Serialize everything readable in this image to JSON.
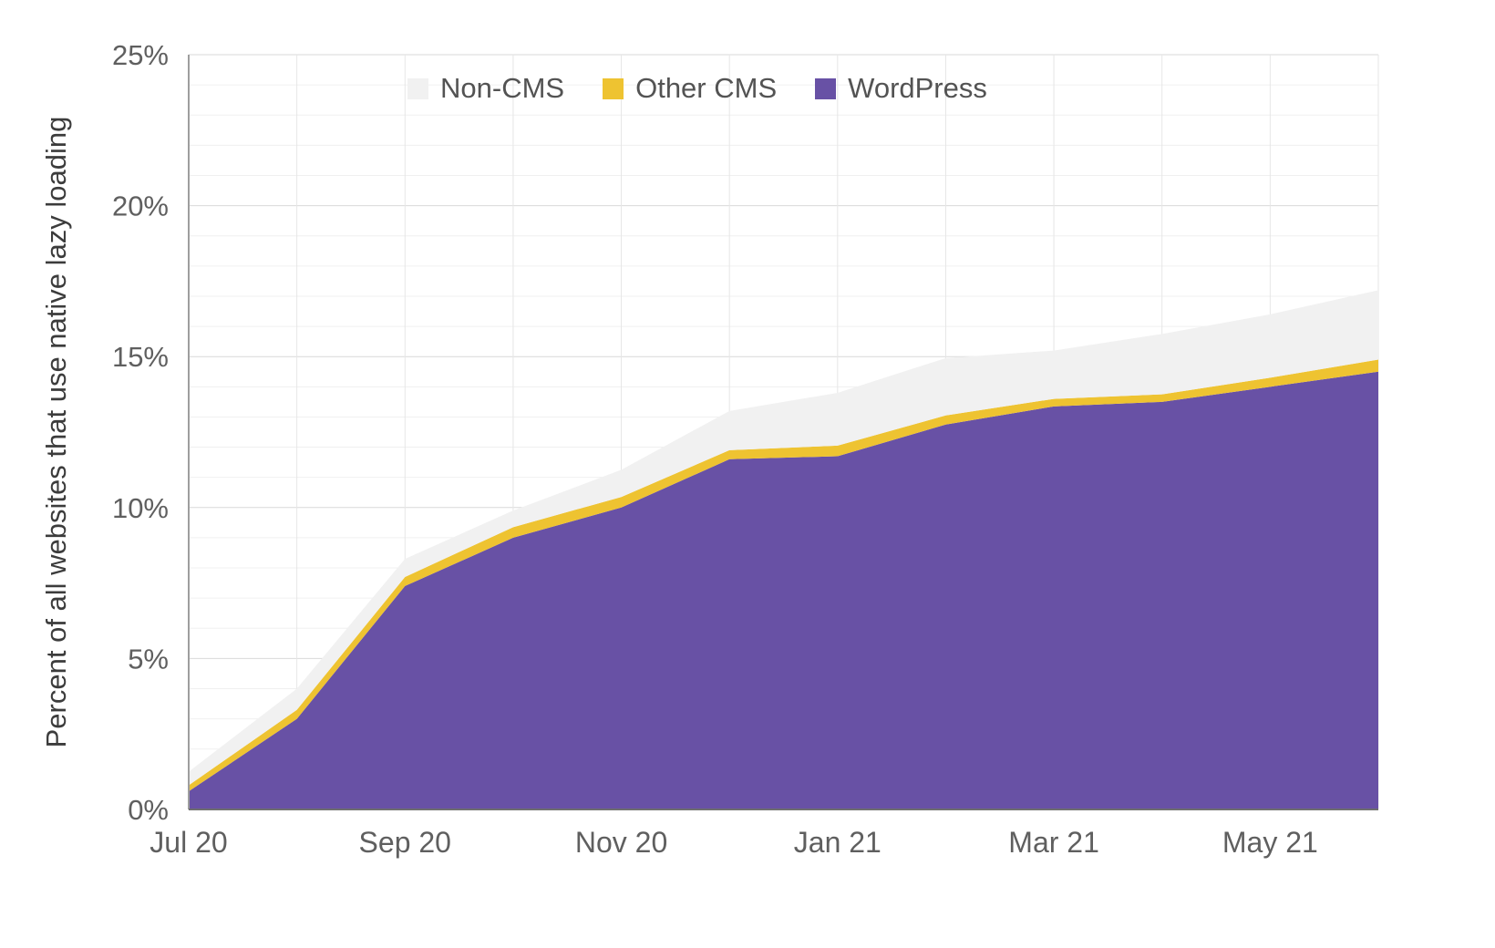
{
  "chart_data": {
    "type": "area",
    "stacked": true,
    "title": "",
    "ylabel": "Percent of all websites that use native lazy loading",
    "xlabel": "",
    "ylim": [
      0,
      25
    ],
    "grid": true,
    "legend_position": "top",
    "y_ticks": [
      0,
      5,
      10,
      15,
      20,
      25
    ],
    "y_tick_labels": [
      "0%",
      "5%",
      "10%",
      "15%",
      "20%",
      "25%"
    ],
    "x": [
      "Jul 20",
      "Aug 20",
      "Sep 20",
      "Oct 20",
      "Nov 20",
      "Dec 20",
      "Jan 21",
      "Feb 21",
      "Mar 21",
      "Apr 21",
      "May 21",
      "Jun 21"
    ],
    "x_tick_labels": [
      "Jul 20",
      "Sep 20",
      "Nov 20",
      "Jan 21",
      "Mar 21",
      "May 21"
    ],
    "x_tick_indices": [
      0,
      2,
      4,
      6,
      8,
      10
    ],
    "legend": [
      {
        "label": "Non-CMS",
        "color": "#f1f1f1"
      },
      {
        "label": "Other CMS",
        "color": "#eec331"
      },
      {
        "label": "WordPress",
        "color": "#6851a5"
      }
    ],
    "series": [
      {
        "name": "WordPress",
        "color": "#6851a5",
        "values": [
          0.6,
          3.0,
          7.4,
          9.0,
          10.0,
          11.6,
          11.7,
          12.75,
          13.35,
          13.5,
          14.0,
          14.5
        ]
      },
      {
        "name": "Other CMS",
        "color": "#eec331",
        "values": [
          0.2,
          0.3,
          0.3,
          0.35,
          0.35,
          0.3,
          0.35,
          0.3,
          0.25,
          0.25,
          0.3,
          0.4
        ]
      },
      {
        "name": "Non-CMS",
        "color": "#f1f1f1",
        "values": [
          0.45,
          0.7,
          0.6,
          0.55,
          0.9,
          1.3,
          1.75,
          1.9,
          1.6,
          2.0,
          2.1,
          2.3
        ]
      }
    ],
    "colors": {
      "axis_x": "#6f6f6f",
      "axis_y": "#9e9e9e",
      "grid_major": "#d9d9d9",
      "grid_minor": "#f0f0f0",
      "grid_vertical": "#e6e6e6",
      "tick_text": "#5f5f5f",
      "title_text": "#3c3c3c"
    }
  }
}
